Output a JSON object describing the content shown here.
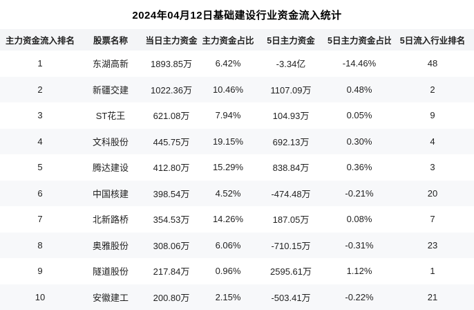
{
  "title": "2024年04月12日基础建设行业资金流入统计",
  "colors": {
    "header_bg": "#f4f5f7",
    "row_alt_bg": "#f7f8fa",
    "row_bg": "#ffffff",
    "text": "#1f1f1f",
    "title": "#000000"
  },
  "chart_data": {
    "type": "table",
    "title": "2024年04月12日基础建设行业资金流入统计",
    "columns": [
      "主力资金流入排名",
      "股票名称",
      "当日主力资金",
      "主力资金占比",
      "5日主力资金",
      "5日主力资金占比",
      "5日流入行业排名"
    ],
    "rows": [
      [
        "1",
        "东湖高新",
        "1893.85万",
        "6.42%",
        "-3.34亿",
        "-14.46%",
        "48"
      ],
      [
        "2",
        "新疆交建",
        "1022.36万",
        "10.46%",
        "1107.09万",
        "0.48%",
        "2"
      ],
      [
        "3",
        "ST花王",
        "621.08万",
        "7.94%",
        "104.93万",
        "0.05%",
        "9"
      ],
      [
        "4",
        "文科股份",
        "445.75万",
        "19.15%",
        "692.13万",
        "0.30%",
        "4"
      ],
      [
        "5",
        "腾达建设",
        "412.80万",
        "15.29%",
        "838.84万",
        "0.36%",
        "3"
      ],
      [
        "6",
        "中国核建",
        "398.54万",
        "4.52%",
        "-474.48万",
        "-0.21%",
        "20"
      ],
      [
        "7",
        "北新路桥",
        "354.53万",
        "14.26%",
        "187.05万",
        "0.08%",
        "7"
      ],
      [
        "8",
        "奥雅股份",
        "308.06万",
        "6.06%",
        "-710.15万",
        "-0.31%",
        "23"
      ],
      [
        "9",
        "隧道股份",
        "217.84万",
        "0.96%",
        "2595.61万",
        "1.12%",
        "1"
      ],
      [
        "10",
        "安徽建工",
        "200.80万",
        "2.15%",
        "-503.41万",
        "-0.22%",
        "21"
      ]
    ]
  }
}
